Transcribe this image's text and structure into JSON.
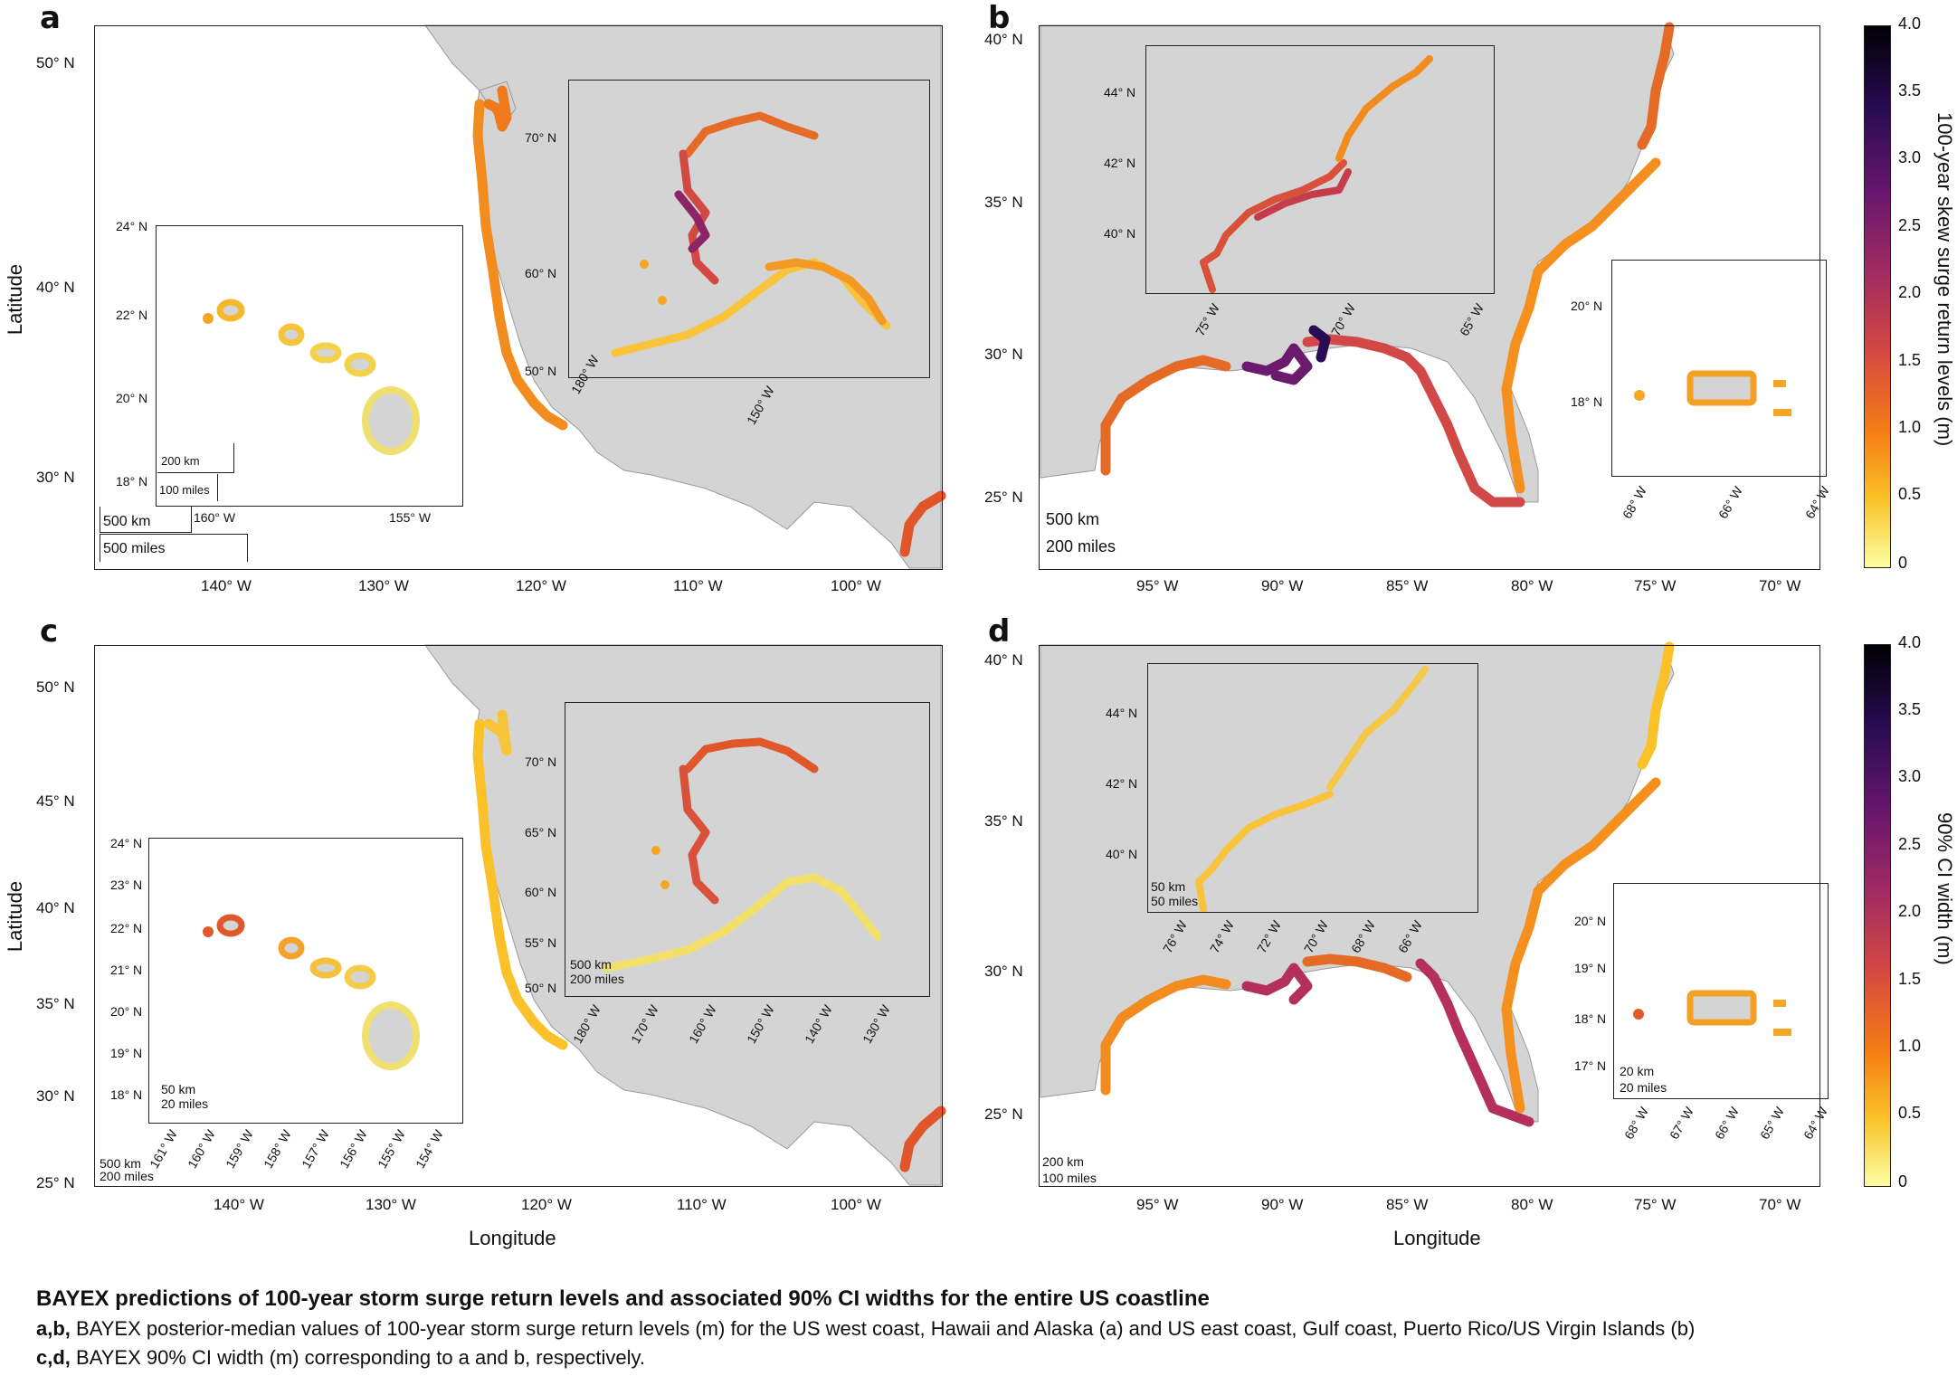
{
  "panels": {
    "a": {
      "letter": "a",
      "ylabel": "Latitude",
      "y_ticks": [
        "50° N",
        "40° N",
        "30° N"
      ],
      "x_ticks": [
        "140° W",
        "130° W",
        "120° W",
        "110° W",
        "100° W"
      ],
      "scale": [
        "500 km",
        "500 miles"
      ],
      "inset_hawaii": {
        "y_ticks": [
          "24° N",
          "22° N",
          "20° N",
          "18° N"
        ],
        "x_ticks": [
          "160° W",
          "155° W"
        ],
        "scale": [
          "200 km",
          "100 miles"
        ]
      },
      "inset_alaska": {
        "y_ticks": [
          "70° N",
          "60° N",
          "50° N"
        ],
        "x_ticks": [
          "180° W",
          "150° W"
        ]
      }
    },
    "b": {
      "letter": "b",
      "y_ticks": [
        "40° N",
        "35° N",
        "30° N",
        "25° N"
      ],
      "x_ticks": [
        "95° W",
        "90° W",
        "85° W",
        "80° W",
        "75° W",
        "70° W"
      ],
      "scale": [
        "500 km",
        "200 miles"
      ],
      "inset_northeast": {
        "y_ticks": [
          "44° N",
          "42° N",
          "40° N"
        ],
        "x_ticks": [
          "75° W",
          "70° W",
          "65° W"
        ]
      },
      "inset_pr": {
        "y_ticks": [
          "20° N",
          "18° N"
        ],
        "x_ticks": [
          "68° W",
          "66° W",
          "64° W"
        ]
      }
    },
    "c": {
      "letter": "c",
      "ylabel": "Latitude",
      "xlabel": "Longitude",
      "y_ticks": [
        "50° N",
        "45° N",
        "40° N",
        "35° N",
        "30° N",
        "25° N"
      ],
      "x_ticks": [
        "140° W",
        "130° W",
        "120° W",
        "110° W",
        "100° W"
      ],
      "scale": [
        "500 km",
        "200 miles"
      ],
      "inset_hawaii": {
        "y_ticks": [
          "24° N",
          "23° N",
          "22° N",
          "21° N",
          "20° N",
          "19° N",
          "18° N"
        ],
        "x_ticks": [
          "161° W",
          "160° W",
          "159° W",
          "158° W",
          "157° W",
          "156° W",
          "155° W",
          "154° W"
        ],
        "scale": [
          "50 km",
          "20 miles"
        ]
      },
      "inset_alaska": {
        "y_ticks": [
          "70° N",
          "65° N",
          "60° N",
          "55° N",
          "50° N"
        ],
        "x_ticks": [
          "180° W",
          "170° W",
          "160° W",
          "150° W",
          "140° W",
          "130° W"
        ],
        "scale": [
          "500 km",
          "200 miles"
        ]
      }
    },
    "d": {
      "letter": "d",
      "xlabel": "Longitude",
      "y_ticks": [
        "40° N",
        "35° N",
        "30° N",
        "25° N"
      ],
      "x_ticks": [
        "95° W",
        "90° W",
        "85° W",
        "80° W",
        "75° W",
        "70° W"
      ],
      "scale": [
        "200 km",
        "100 miles"
      ],
      "inset_northeast": {
        "y_ticks": [
          "44° N",
          "42° N",
          "40° N"
        ],
        "x_ticks": [
          "76° W",
          "74° W",
          "72° W",
          "70° W",
          "68° W",
          "66° W"
        ],
        "scale": [
          "50 km",
          "50 miles"
        ]
      },
      "inset_pr": {
        "y_ticks": [
          "20° N",
          "19° N",
          "18° N",
          "17° N"
        ],
        "x_ticks": [
          "68° W",
          "67° W",
          "66° W",
          "65° W",
          "64° W"
        ],
        "scale": [
          "20 km",
          "20 miles"
        ]
      }
    }
  },
  "colorbars": {
    "top": {
      "title": "100-year skew surge return levels (m)",
      "ticks": [
        "4.0",
        "3.5",
        "3.0",
        "2.5",
        "2.0",
        "1.5",
        "1.0",
        "0.5",
        "0"
      ]
    },
    "bottom": {
      "title": "90% CI width (m)",
      "ticks": [
        "4.0",
        "3.5",
        "3.0",
        "2.5",
        "2.0",
        "1.5",
        "1.0",
        "0.5",
        "0"
      ]
    }
  },
  "caption": {
    "title": "BAYEX predictions of 100-year storm surge return levels and associated 90% CI widths for the entire US coastline",
    "line1_prefix": "a,b,",
    "line1_text": " BAYEX posterior-median values of 100-year storm surge return levels (m) for the US west coast, Hawaii and Alaska (a) and US east coast, Gulf coast, Puerto Rico/US Virgin Islands (b)",
    "line2_prefix": "c,d,",
    "line2_text": " BAYEX 90% CI width (m) corresponding to a and b, respectively."
  },
  "colors": {
    "land": "#d4d4d4",
    "border": "#8a8a8a",
    "sea": "#ffffff"
  }
}
